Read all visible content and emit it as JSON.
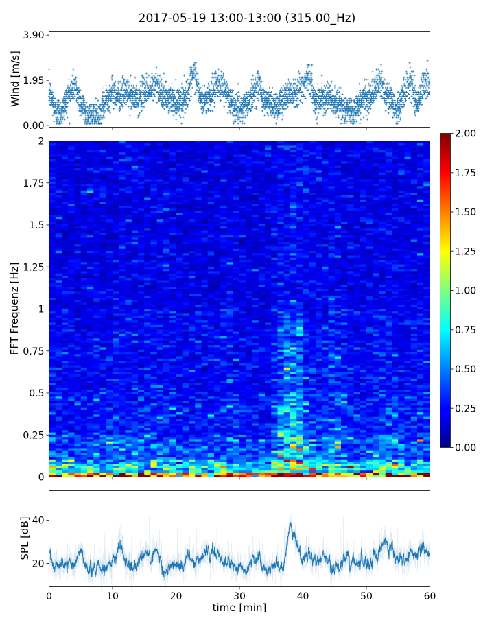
{
  "title": "2017-05-19 13:00-13:00 (315.00_Hz)",
  "chart_data": [
    {
      "type": "scatter",
      "panel": "wind",
      "ylabel": "Wind [m/s]",
      "ylim": [
        -0.07,
        4.07
      ],
      "xlim": [
        0,
        60
      ],
      "yticks": [
        "0.00",
        "1.95",
        "3.90"
      ],
      "yticks_values": [
        0,
        1.95,
        3.9
      ],
      "marker": "+",
      "color": "#1f77b4",
      "x": [
        0,
        1,
        2,
        3,
        4,
        5,
        6,
        7,
        8,
        9,
        10,
        11,
        12,
        13,
        14,
        15,
        16,
        17,
        18,
        19,
        20,
        21,
        22,
        23,
        24,
        25,
        26,
        27,
        28,
        29,
        30,
        31,
        32,
        33,
        34,
        35,
        36,
        37,
        38,
        39,
        40,
        41,
        42,
        43,
        44,
        45,
        46,
        47,
        48,
        49,
        50,
        51,
        52,
        53,
        54,
        55,
        56,
        57,
        58,
        59,
        60
      ],
      "y": [
        1.5,
        0.6,
        0.5,
        1.3,
        1.8,
        1.0,
        0.4,
        0.4,
        0.3,
        1.2,
        1.5,
        1.3,
        1.5,
        1.3,
        1.1,
        1.6,
        1.5,
        1.9,
        1.3,
        1.2,
        1.0,
        1.1,
        1.6,
        2.3,
        1.0,
        1.3,
        1.5,
        1.8,
        1.5,
        0.8,
        0.7,
        0.9,
        1.3,
        1.9,
        1.0,
        1.0,
        0.8,
        1.2,
        1.5,
        1.5,
        1.8,
        2.1,
        1.0,
        1.3,
        1.2,
        1.0,
        0.8,
        0.6,
        0.6,
        1.0,
        1.2,
        1.4,
        1.9,
        1.5,
        1.0,
        0.6,
        1.5,
        2.0,
        0.9,
        1.8,
        1.9
      ]
    },
    {
      "type": "heatmap",
      "panel": "spectrogram",
      "ylabel": "FFT Frequenz [Hz]",
      "ylim": [
        0,
        2
      ],
      "xlim": [
        0,
        60
      ],
      "yticks": [
        "0",
        "0.25",
        "0.5",
        "0.75",
        "1",
        "1.25",
        "1.5",
        "1.75",
        "2"
      ],
      "yticks_values": [
        0,
        0.25,
        0.5,
        0.75,
        1,
        1.25,
        1.5,
        1.75,
        2
      ],
      "colormap": "jet",
      "clim": [
        0,
        2
      ],
      "colorbar_ticks": [
        "0.00",
        "0.25",
        "0.50",
        "0.75",
        "1.00",
        "1.25",
        "1.50",
        "1.75",
        "2.00"
      ],
      "time_bins_min": [
        1,
        3,
        5,
        7,
        9,
        11,
        13,
        15,
        17,
        19,
        21,
        23,
        25,
        27,
        29,
        31,
        33,
        35,
        37,
        39,
        41,
        43,
        45,
        47,
        49,
        51,
        53,
        55,
        57,
        59
      ],
      "band_edges_hz": [
        0,
        0.03,
        0.1,
        0.25,
        0.5,
        1.0,
        2.0
      ],
      "values": [
        [
          1.7,
          1.5,
          1.4,
          1.6,
          1.3,
          1.9,
          1.5,
          1.4,
          1.6,
          1.5,
          1.3,
          1.7,
          1.4,
          1.5,
          1.6,
          1.4,
          1.3,
          1.5,
          1.8,
          2.0,
          1.9,
          1.6,
          1.5,
          1.4,
          1.5,
          1.7,
          1.9,
          1.6,
          1.8,
          1.6
        ],
        [
          0.8,
          0.7,
          0.6,
          0.7,
          0.6,
          0.9,
          0.8,
          0.7,
          0.8,
          0.8,
          0.6,
          0.7,
          0.6,
          0.7,
          0.8,
          0.6,
          0.6,
          0.7,
          1.1,
          1.2,
          0.9,
          0.8,
          0.9,
          0.7,
          0.6,
          0.8,
          1.0,
          0.8,
          0.7,
          0.8
        ],
        [
          0.45,
          0.4,
          0.35,
          0.4,
          0.35,
          0.5,
          0.45,
          0.4,
          0.45,
          0.4,
          0.35,
          0.4,
          0.35,
          0.4,
          0.45,
          0.35,
          0.35,
          0.4,
          0.75,
          0.8,
          0.5,
          0.45,
          0.6,
          0.4,
          0.35,
          0.45,
          0.5,
          0.45,
          0.4,
          0.45
        ],
        [
          0.3,
          0.28,
          0.26,
          0.28,
          0.26,
          0.3,
          0.3,
          0.28,
          0.3,
          0.28,
          0.26,
          0.28,
          0.26,
          0.28,
          0.3,
          0.26,
          0.26,
          0.3,
          0.6,
          0.65,
          0.34,
          0.32,
          0.4,
          0.3,
          0.26,
          0.3,
          0.32,
          0.3,
          0.28,
          0.3
        ],
        [
          0.25,
          0.23,
          0.22,
          0.24,
          0.22,
          0.25,
          0.25,
          0.24,
          0.25,
          0.24,
          0.22,
          0.24,
          0.22,
          0.24,
          0.25,
          0.22,
          0.22,
          0.25,
          0.4,
          0.45,
          0.28,
          0.26,
          0.3,
          0.25,
          0.22,
          0.25,
          0.26,
          0.25,
          0.24,
          0.25
        ],
        [
          0.2,
          0.19,
          0.18,
          0.2,
          0.18,
          0.2,
          0.2,
          0.19,
          0.2,
          0.2,
          0.18,
          0.19,
          0.18,
          0.19,
          0.2,
          0.18,
          0.18,
          0.2,
          0.24,
          0.25,
          0.22,
          0.21,
          0.22,
          0.2,
          0.18,
          0.2,
          0.21,
          0.2,
          0.19,
          0.2
        ]
      ]
    },
    {
      "type": "line",
      "panel": "spl",
      "xlabel": "time [min]",
      "ylabel": "SPL [dB]",
      "ylim": [
        9.2,
        53.7
      ],
      "xlim": [
        0,
        60
      ],
      "xticks": [
        "0",
        "10",
        "20",
        "30",
        "40",
        "50",
        "60"
      ],
      "xticks_values": [
        0,
        10,
        20,
        30,
        40,
        50,
        60
      ],
      "yticks": [
        "20",
        "40"
      ],
      "yticks_values": [
        20,
        40
      ],
      "color": "#1f77b4",
      "x": [
        0,
        1,
        2,
        3,
        4,
        5,
        6,
        7,
        8,
        9,
        10,
        11,
        12,
        13,
        14,
        15,
        16,
        17,
        18,
        19,
        20,
        21,
        22,
        23,
        24,
        25,
        26,
        27,
        28,
        29,
        30,
        31,
        32,
        33,
        34,
        35,
        36,
        37,
        38,
        39,
        40,
        41,
        42,
        43,
        44,
        45,
        46,
        47,
        48,
        49,
        50,
        51,
        52,
        53,
        54,
        55,
        56,
        57,
        58,
        59,
        60
      ],
      "y": [
        25,
        20,
        20,
        21,
        19,
        24,
        18,
        17,
        17,
        18,
        22,
        28,
        21,
        19,
        22,
        27,
        24,
        26,
        17,
        19,
        20,
        18,
        25,
        20,
        22,
        25,
        24,
        23,
        21,
        18,
        20,
        18,
        22,
        20,
        18,
        18,
        18,
        20,
        38,
        28,
        23,
        25,
        20,
        22,
        22,
        17,
        18,
        23,
        20,
        19,
        18,
        24,
        25,
        32,
        24,
        20,
        21,
        26,
        24,
        27,
        24
      ]
    }
  ]
}
